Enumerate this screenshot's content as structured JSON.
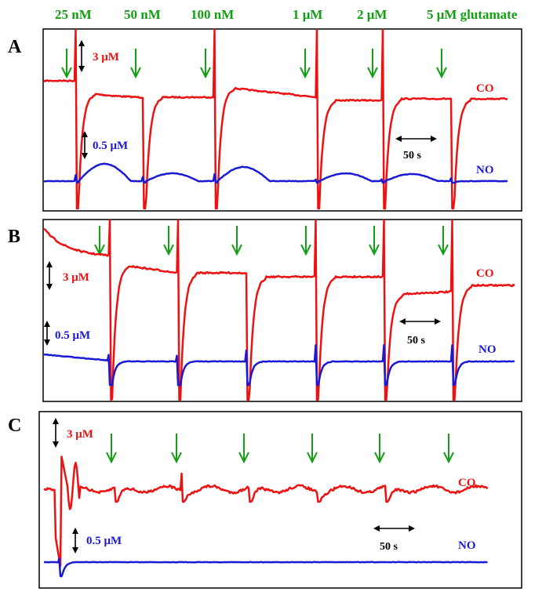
{
  "colors": {
    "co": "#ee1111",
    "no": "#1a1ad6",
    "arrow": "#139e13",
    "text_green": "#139e13",
    "frame": "#000000"
  },
  "glutamate_labels": [
    "25 nM",
    "50 nM",
    "100 nM",
    "1 μM",
    "2 μM",
    "5 μM glutamate"
  ],
  "chart_data": [
    {
      "type": "line",
      "panel": "A",
      "units": "μM",
      "series": [
        {
          "name": "CO",
          "color": "#ee1111",
          "trace": "CO"
        },
        {
          "name": "NO",
          "color": "#1a1ad6",
          "trace": "NO"
        }
      ],
      "scale_bars": {
        "co": "3 μM",
        "no": "0.5 μM",
        "time": "50 s"
      },
      "arrows": 6
    },
    {
      "type": "line",
      "panel": "B",
      "units": "μM",
      "series": [
        {
          "name": "CO",
          "color": "#ee1111",
          "trace": "CO"
        },
        {
          "name": "NO",
          "color": "#1a1ad6",
          "trace": "NO"
        }
      ],
      "scale_bars": {
        "co": "3 μM",
        "no": "0.5 μM",
        "time": "50 s"
      },
      "arrows": 6
    },
    {
      "type": "line",
      "panel": "C",
      "units": "μM",
      "series": [
        {
          "name": "CO",
          "color": "#ee1111",
          "trace": "CO"
        },
        {
          "name": "NO",
          "color": "#1a1ad6",
          "trace": "NO"
        }
      ],
      "scale_bars": {
        "co": "3 μM",
        "no": "0.5 μM",
        "time": "50 s"
      },
      "arrows": 6
    }
  ]
}
